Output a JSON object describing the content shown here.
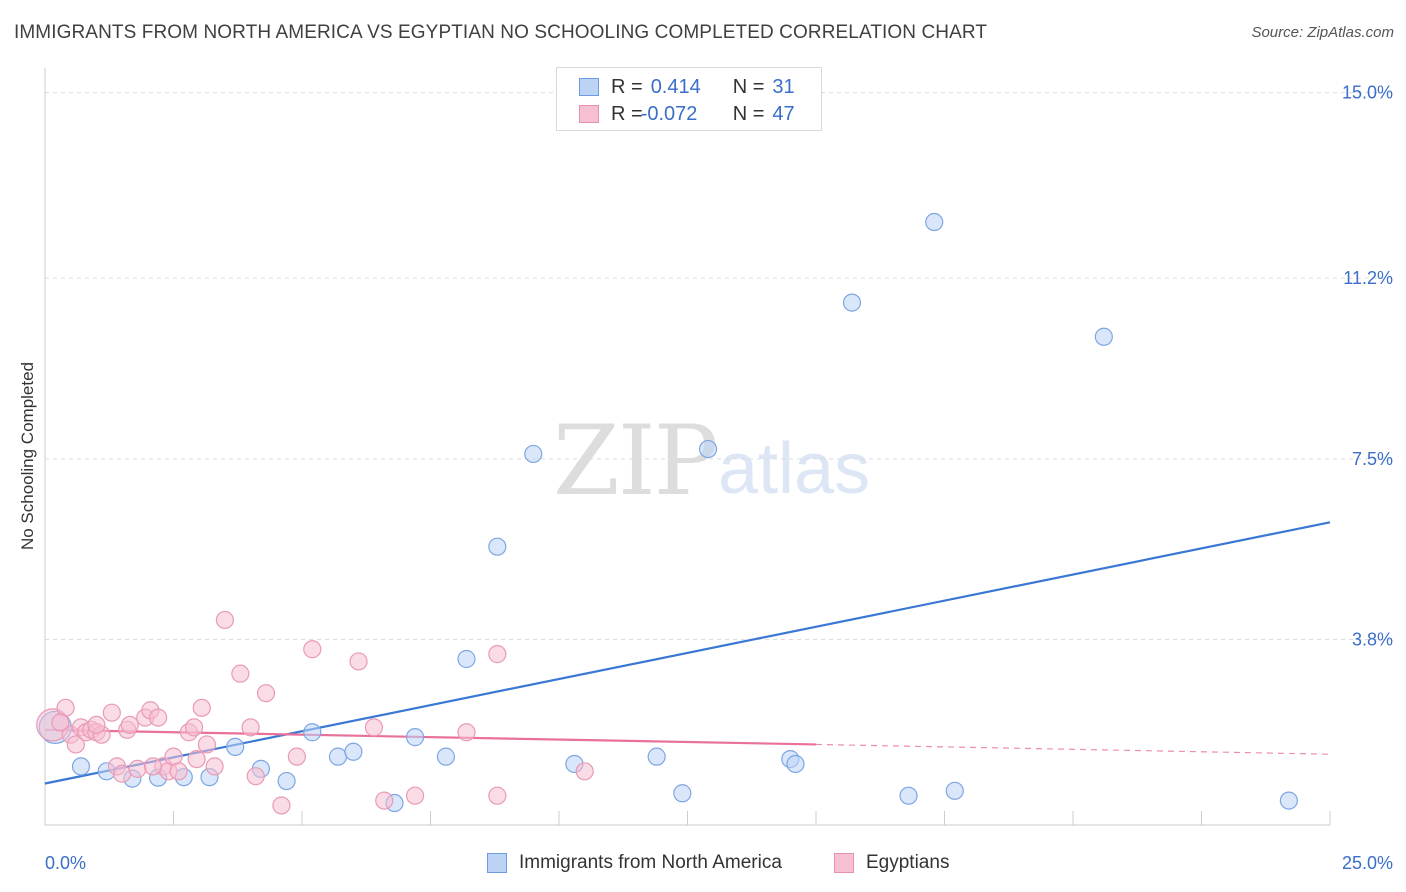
{
  "title": "IMMIGRANTS FROM NORTH AMERICA VS EGYPTIAN NO SCHOOLING COMPLETED CORRELATION CHART",
  "source": "Source: ZipAtlas.com",
  "watermark": {
    "zip": "ZIP",
    "atlas": "atlas"
  },
  "colors": {
    "blue": "#3a78d4",
    "blue_fill": "#bcd3f5",
    "pink": "#e8709b",
    "pink_fill": "#f6c0d2",
    "text_blue": "#3a6ec9"
  },
  "legend": {
    "rows": [
      {
        "r_label": "R =",
        "r_value": "0.414",
        "n_label": "N =",
        "n_value": "31"
      },
      {
        "r_label": "R =",
        "r_value": "-0.072",
        "n_label": "N =",
        "n_value": "47"
      }
    ]
  },
  "chart_data": {
    "type": "scatter",
    "title": "IMMIGRANTS FROM NORTH AMERICA VS EGYPTIAN NO SCHOOLING COMPLETED CORRELATION CHART",
    "xlabel": "",
    "ylabel": "No Schooling Completed",
    "xlim": [
      0,
      25
    ],
    "ylim": [
      0,
      15.3
    ],
    "x_tick_labels": [
      "0.0%",
      "25.0%"
    ],
    "y_ticks": [
      3.8,
      7.5,
      11.2,
      15.0
    ],
    "y_tick_labels": [
      "3.8%",
      "7.5%",
      "11.2%",
      "15.0%"
    ],
    "series": [
      {
        "name": "Immigrants from North America",
        "r": 0.414,
        "n": 31,
        "trend": {
          "x0": 0,
          "y0": 0.85,
          "x1": 25,
          "y1": 6.2,
          "solid_until": 25
        },
        "points": [
          {
            "x": 0.2,
            "y": 2.0,
            "big": true
          },
          {
            "x": 0.7,
            "y": 1.2
          },
          {
            "x": 1.2,
            "y": 1.1
          },
          {
            "x": 1.7,
            "y": 0.95
          },
          {
            "x": 2.2,
            "y": 0.97
          },
          {
            "x": 2.7,
            "y": 0.98
          },
          {
            "x": 3.2,
            "y": 0.98
          },
          {
            "x": 3.7,
            "y": 1.6
          },
          {
            "x": 4.2,
            "y": 1.15
          },
          {
            "x": 4.7,
            "y": 0.9
          },
          {
            "x": 5.2,
            "y": 1.9
          },
          {
            "x": 5.7,
            "y": 1.4
          },
          {
            "x": 6.0,
            "y": 1.5
          },
          {
            "x": 6.8,
            "y": 0.45
          },
          {
            "x": 7.2,
            "y": 1.8
          },
          {
            "x": 7.8,
            "y": 1.4
          },
          {
            "x": 8.2,
            "y": 3.4
          },
          {
            "x": 8.8,
            "y": 5.7
          },
          {
            "x": 9.5,
            "y": 7.6
          },
          {
            "x": 10.3,
            "y": 1.25
          },
          {
            "x": 11.9,
            "y": 1.4
          },
          {
            "x": 12.4,
            "y": 0.65
          },
          {
            "x": 12.9,
            "y": 7.7
          },
          {
            "x": 14.5,
            "y": 1.35
          },
          {
            "x": 14.6,
            "y": 1.25
          },
          {
            "x": 15.7,
            "y": 10.7
          },
          {
            "x": 17.3,
            "y": 12.35
          },
          {
            "x": 16.8,
            "y": 0.6
          },
          {
            "x": 17.7,
            "y": 0.7
          },
          {
            "x": 20.6,
            "y": 10.0
          },
          {
            "x": 24.2,
            "y": 0.5
          }
        ]
      },
      {
        "name": "Egyptians",
        "r": -0.072,
        "n": 47,
        "trend": {
          "x0": 0,
          "y0": 1.95,
          "x1": 25,
          "y1": 1.45,
          "solid_until": 15
        },
        "points": [
          {
            "x": 0.15,
            "y": 2.05,
            "big": true
          },
          {
            "x": 0.4,
            "y": 2.4
          },
          {
            "x": 0.5,
            "y": 1.85
          },
          {
            "x": 0.6,
            "y": 1.65
          },
          {
            "x": 0.7,
            "y": 2.0
          },
          {
            "x": 0.8,
            "y": 1.9
          },
          {
            "x": 0.9,
            "y": 1.95
          },
          {
            "x": 1.0,
            "y": 1.9
          },
          {
            "x": 1.1,
            "y": 1.85
          },
          {
            "x": 1.3,
            "y": 2.3
          },
          {
            "x": 1.4,
            "y": 1.2
          },
          {
            "x": 1.5,
            "y": 1.05
          },
          {
            "x": 1.6,
            "y": 1.95
          },
          {
            "x": 1.65,
            "y": 2.05
          },
          {
            "x": 1.8,
            "y": 1.15
          },
          {
            "x": 1.95,
            "y": 2.2
          },
          {
            "x": 2.05,
            "y": 2.35
          },
          {
            "x": 2.2,
            "y": 2.2
          },
          {
            "x": 2.3,
            "y": 1.2
          },
          {
            "x": 2.4,
            "y": 1.1
          },
          {
            "x": 2.5,
            "y": 1.4
          },
          {
            "x": 2.6,
            "y": 1.1
          },
          {
            "x": 2.8,
            "y": 1.9
          },
          {
            "x": 2.9,
            "y": 2.0
          },
          {
            "x": 3.05,
            "y": 2.4
          },
          {
            "x": 3.15,
            "y": 1.65
          },
          {
            "x": 3.3,
            "y": 1.2
          },
          {
            "x": 3.5,
            "y": 4.2
          },
          {
            "x": 3.8,
            "y": 3.1
          },
          {
            "x": 4.0,
            "y": 2.0
          },
          {
            "x": 4.1,
            "y": 1.0
          },
          {
            "x": 4.3,
            "y": 2.7
          },
          {
            "x": 4.6,
            "y": 0.4
          },
          {
            "x": 4.9,
            "y": 1.4
          },
          {
            "x": 5.2,
            "y": 3.6
          },
          {
            "x": 6.1,
            "y": 3.35
          },
          {
            "x": 6.4,
            "y": 2.0
          },
          {
            "x": 6.6,
            "y": 0.5
          },
          {
            "x": 7.2,
            "y": 0.6
          },
          {
            "x": 8.2,
            "y": 1.9
          },
          {
            "x": 8.8,
            "y": 3.5
          },
          {
            "x": 8.8,
            "y": 0.6
          },
          {
            "x": 10.5,
            "y": 1.1
          },
          {
            "x": 2.95,
            "y": 1.35
          },
          {
            "x": 0.3,
            "y": 2.1
          },
          {
            "x": 1.0,
            "y": 2.05
          },
          {
            "x": 2.1,
            "y": 1.2
          }
        ]
      }
    ]
  },
  "bottom_legend": [
    {
      "label": "Immigrants from North America"
    },
    {
      "label": "Egyptians"
    }
  ]
}
